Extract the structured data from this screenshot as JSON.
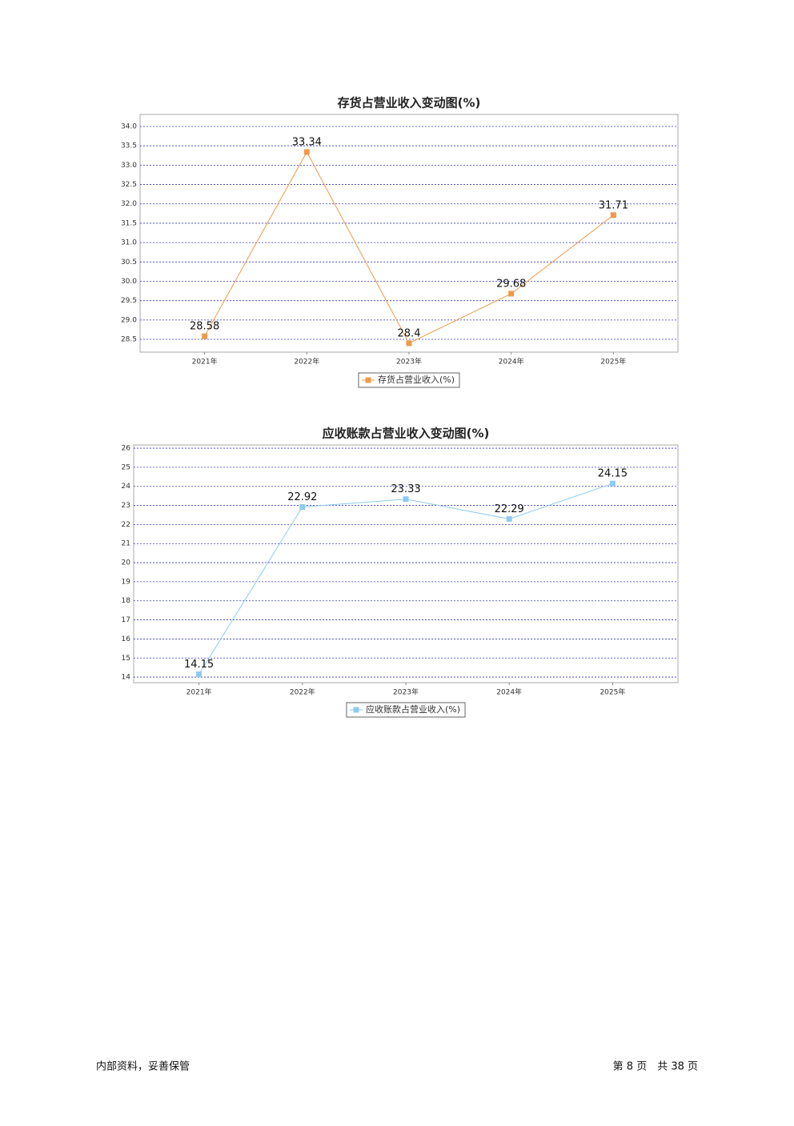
{
  "chart_data": [
    {
      "type": "line",
      "title": "存货占营业收入变动图(%)",
      "categories": [
        "2021年",
        "2022年",
        "2023年",
        "2024年",
        "2025年"
      ],
      "series": [
        {
          "name": "存货占营业收入(%)",
          "color": "#ee9a48",
          "values": [
            28.58,
            33.34,
            28.4,
            29.68,
            31.71
          ]
        }
      ],
      "ylim": [
        28.17,
        34.31
      ],
      "yticks": [
        28.5,
        {
          "value": 29,
          "label": "29.0"
        },
        29.5,
        {
          "value": 30,
          "label": "30.0"
        },
        30.5,
        {
          "value": 31,
          "label": "31.0"
        },
        31.5,
        {
          "value": 32,
          "label": "32.0"
        },
        32.5,
        {
          "value": 33,
          "label": "33.0"
        },
        33.5,
        {
          "value": 34,
          "label": "34.0"
        }
      ],
      "grid": true,
      "legend": "bottom"
    },
    {
      "type": "line",
      "title": "应收账款占营业收入变动图(%)",
      "categories": [
        "2021年",
        "2022年",
        "2023年",
        "2024年",
        "2025年"
      ],
      "series": [
        {
          "name": "应收账款占营业收入(%)",
          "color": "#8ecbf0",
          "values": [
            14.15,
            22.92,
            23.33,
            22.29,
            24.15
          ]
        }
      ],
      "ylim": [
        13.71,
        26.17
      ],
      "yticks": [
        14,
        15,
        16,
        17,
        18,
        19,
        20,
        21,
        22,
        23,
        24,
        25,
        26
      ],
      "grid": true,
      "legend": "bottom"
    }
  ],
  "footer": {
    "left": "内部资料，妥善保管",
    "right": "第 8 页　共 38 页"
  }
}
